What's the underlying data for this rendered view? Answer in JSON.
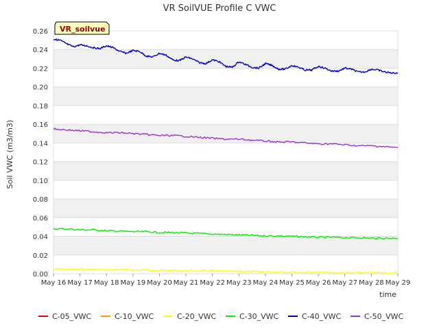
{
  "chart_data": {
    "type": "line",
    "title": "VR SoilVUE Profile C VWC",
    "xlabel": "time",
    "ylabel": "Soil VWC (m3/m3)",
    "site_label": "VR_soilvue",
    "x_ticks": [
      "May 16",
      "May 17",
      "May 18",
      "May 19",
      "May 20",
      "May 21",
      "May 22",
      "May 23",
      "May 24",
      "May 25",
      "May 26",
      "May 27",
      "May 28",
      "May 29"
    ],
    "xlim": [
      "May 16",
      "May 29"
    ],
    "ylim": [
      0,
      0.26
    ],
    "y_ticks": [
      "0.00",
      "0.02",
      "0.04",
      "0.06",
      "0.08",
      "0.10",
      "0.12",
      "0.14",
      "0.16",
      "0.18",
      "0.20",
      "0.22",
      "0.24",
      "0.26"
    ],
    "grid": true,
    "legend_position": "bottom",
    "series": [
      {
        "name": "C-05_VWC",
        "color": "#dd0000",
        "x": [],
        "values": []
      },
      {
        "name": "C-10_VWC",
        "color": "#ff9900",
        "x": [],
        "values": []
      },
      {
        "name": "C-20_VWC",
        "color": "#ffff00",
        "x": [
          "May 16",
          "May 16 12:00",
          "May 17",
          "May 17 12:00",
          "May 18",
          "May 18 12:00",
          "May 19",
          "May 19 12:00",
          "May 20",
          "May 20 12:00",
          "May 21",
          "May 21 12:00",
          "May 22",
          "May 22 12:00",
          "May 23",
          "May 23 12:00",
          "May 24",
          "May 24 12:00",
          "May 25",
          "May 25 12:00",
          "May 26",
          "May 26 12:00",
          "May 27",
          "May 27 12:00",
          "May 28",
          "May 28 12:00",
          "May 29"
        ],
        "values": [
          0.005,
          0.0045,
          0.0045,
          0.0045,
          0.004,
          0.0045,
          0.004,
          0.004,
          0.0035,
          0.0035,
          0.003,
          0.003,
          0.003,
          0.0025,
          0.0025,
          0.002,
          0.002,
          0.002,
          0.0015,
          0.0015,
          0.0015,
          0.001,
          0.001,
          0.001,
          0.001,
          0.001,
          0.001
        ]
      },
      {
        "name": "C-30_VWC",
        "color": "#00ee00",
        "x": [
          "May 16",
          "May 16 12:00",
          "May 17",
          "May 17 12:00",
          "May 18",
          "May 18 12:00",
          "May 19",
          "May 19 12:00",
          "May 20",
          "May 20 12:00",
          "May 21",
          "May 21 12:00",
          "May 22",
          "May 22 12:00",
          "May 23",
          "May 23 12:00",
          "May 24",
          "May 24 12:00",
          "May 25",
          "May 25 12:00",
          "May 26",
          "May 26 12:00",
          "May 27",
          "May 27 12:00",
          "May 28",
          "May 28 12:00",
          "May 29"
        ],
        "values": [
          0.048,
          0.048,
          0.047,
          0.047,
          0.046,
          0.0455,
          0.045,
          0.045,
          0.044,
          0.044,
          0.0435,
          0.043,
          0.0425,
          0.042,
          0.0415,
          0.041,
          0.0405,
          0.0405,
          0.04,
          0.0395,
          0.039,
          0.039,
          0.0385,
          0.0385,
          0.038,
          0.038,
          0.038
        ]
      },
      {
        "name": "C-40_VWC",
        "color": "#0000cc",
        "x": [
          "May 16",
          "May 16 06:00",
          "May 16 12:00",
          "May 16 18:00",
          "May 17",
          "May 17 06:00",
          "May 17 12:00",
          "May 17 18:00",
          "May 18",
          "May 18 06:00",
          "May 18 12:00",
          "May 18 18:00",
          "May 19",
          "May 19 06:00",
          "May 19 12:00",
          "May 19 18:00",
          "May 20",
          "May 20 06:00",
          "May 20 12:00",
          "May 20 18:00",
          "May 21",
          "May 21 06:00",
          "May 21 12:00",
          "May 21 18:00",
          "May 22",
          "May 22 06:00",
          "May 22 12:00",
          "May 22 18:00",
          "May 23",
          "May 23 06:00",
          "May 23 12:00",
          "May 23 18:00",
          "May 24",
          "May 24 06:00",
          "May 24 12:00",
          "May 24 18:00",
          "May 25",
          "May 25 06:00",
          "May 25 12:00",
          "May 25 18:00",
          "May 26",
          "May 26 06:00",
          "May 26 12:00",
          "May 26 18:00",
          "May 27",
          "May 27 06:00",
          "May 27 12:00",
          "May 27 18:00",
          "May 28",
          "May 28 06:00",
          "May 28 12:00",
          "May 28 18:00",
          "May 29"
        ],
        "values": [
          0.251,
          0.25,
          0.246,
          0.243,
          0.245,
          0.244,
          0.242,
          0.241,
          0.244,
          0.242,
          0.238,
          0.236,
          0.239,
          0.238,
          0.233,
          0.232,
          0.236,
          0.234,
          0.229,
          0.228,
          0.232,
          0.23,
          0.226,
          0.225,
          0.229,
          0.227,
          0.222,
          0.221,
          0.227,
          0.224,
          0.221,
          0.22,
          0.225,
          0.223,
          0.219,
          0.219,
          0.223,
          0.221,
          0.218,
          0.218,
          0.222,
          0.22,
          0.217,
          0.217,
          0.22,
          0.219,
          0.216,
          0.216,
          0.219,
          0.218,
          0.216,
          0.215,
          0.215
        ]
      },
      {
        "name": "C-50_VWC",
        "color": "#9933cc",
        "x": [
          "May 16",
          "May 16 12:00",
          "May 17",
          "May 17 12:00",
          "May 18",
          "May 18 12:00",
          "May 19",
          "May 19 12:00",
          "May 20",
          "May 20 12:00",
          "May 21",
          "May 21 12:00",
          "May 22",
          "May 22 12:00",
          "May 23",
          "May 23 12:00",
          "May 24",
          "May 24 12:00",
          "May 25",
          "May 25 12:00",
          "May 26",
          "May 26 12:00",
          "May 27",
          "May 27 12:00",
          "May 28",
          "May 28 12:00",
          "May 29"
        ],
        "values": [
          0.155,
          0.154,
          0.153,
          0.152,
          0.151,
          0.151,
          0.15,
          0.149,
          0.148,
          0.148,
          0.147,
          0.146,
          0.145,
          0.144,
          0.144,
          0.143,
          0.142,
          0.141,
          0.141,
          0.14,
          0.139,
          0.139,
          0.138,
          0.137,
          0.137,
          0.136,
          0.135
        ]
      }
    ]
  }
}
